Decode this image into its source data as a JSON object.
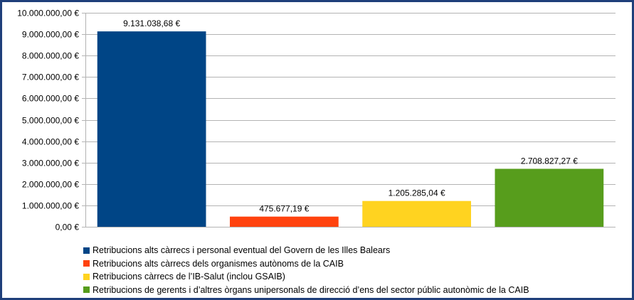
{
  "chart_data": {
    "type": "bar",
    "categories": [
      "Retribucions alts càrrecs i personal eventual del Govern de les Illes Balears",
      "Retribucions alts càrrecs dels organismes autònoms de la CAIB",
      "Retribucions càrrecs de l’IB-Salut (inclou GSAIB)",
      "Retribucions de gerents i d’altres òrgans unipersonals de direcció d’ens del sector públic autonòmic de la CAIB"
    ],
    "values": [
      9131038.68,
      475677.19,
      1205285.04,
      2708827.27
    ],
    "data_labels": [
      "9.131.038,68 €",
      "475.677,19 €",
      "1.205.285,04 €",
      "2.708.827,27 €"
    ],
    "colors": [
      "#004586",
      "#ff420e",
      "#ffd320",
      "#579d1c"
    ],
    "ylim": [
      0,
      10000000
    ],
    "y_ticks": [
      0,
      1000000,
      2000000,
      3000000,
      4000000,
      5000000,
      6000000,
      7000000,
      8000000,
      9000000,
      10000000
    ],
    "y_tick_labels": [
      "0,00 €",
      "1.000.000,00 €",
      "2.000.000,00 €",
      "3.000.000,00 €",
      "4.000.000,00 €",
      "5.000.000,00 €",
      "6.000.000,00 €",
      "7.000.000,00 €",
      "8.000.000,00 €",
      "9.000.000,00 €",
      "10.000.000,00 €"
    ],
    "grid": true,
    "legend_position": "bottom",
    "title": "",
    "xlabel": "",
    "ylabel": ""
  }
}
